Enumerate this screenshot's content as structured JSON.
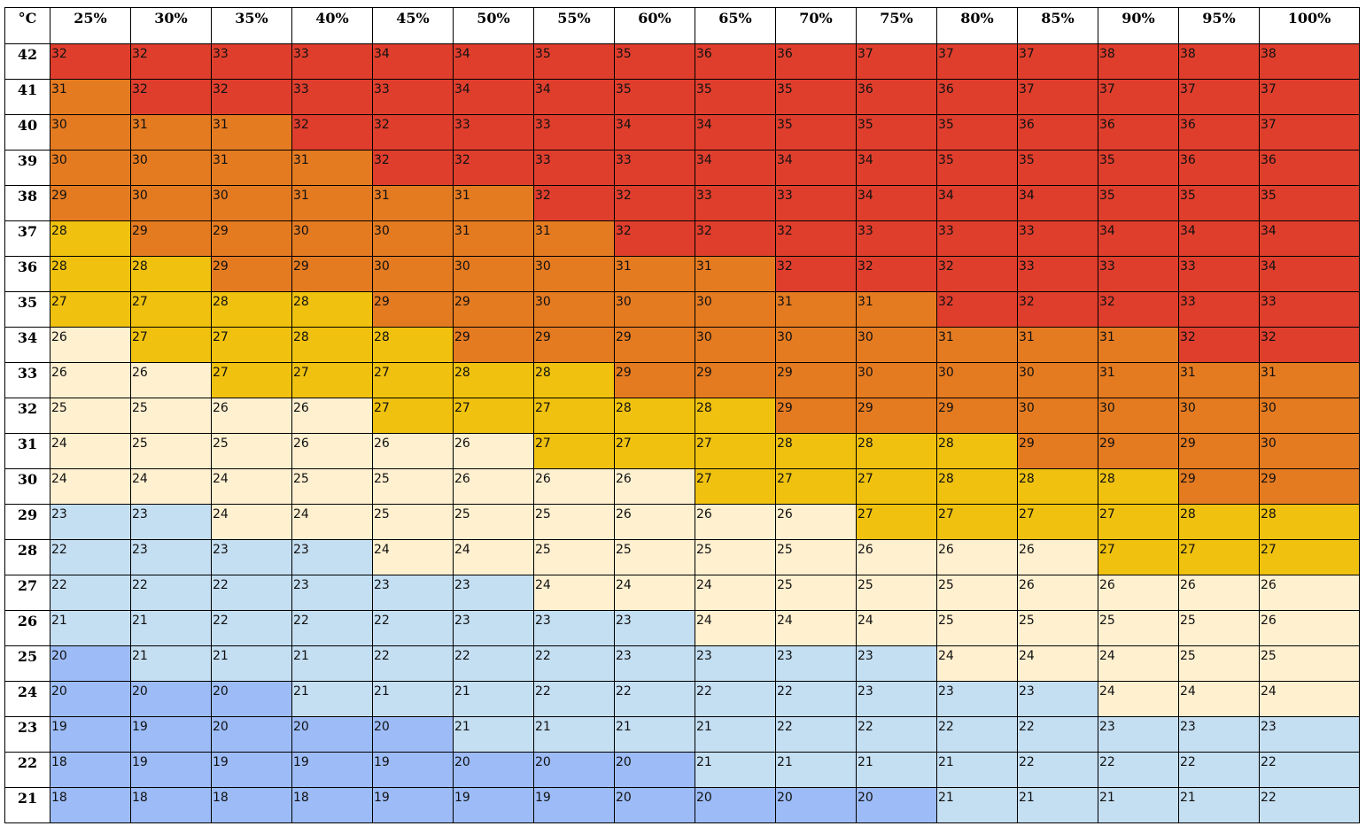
{
  "chart_data": {
    "type": "heatmap",
    "corner_label": "°C",
    "x": [
      "25%",
      "30%",
      "35%",
      "40%",
      "45%",
      "50%",
      "55%",
      "60%",
      "65%",
      "70%",
      "75%",
      "80%",
      "85%",
      "90%",
      "95%",
      "100%"
    ],
    "y": [
      "42",
      "41",
      "40",
      "39",
      "38",
      "37",
      "36",
      "35",
      "34",
      "33",
      "32",
      "31",
      "30",
      "29",
      "28",
      "27",
      "26",
      "25",
      "24",
      "23",
      "22",
      "21"
    ],
    "values": [
      [
        32,
        32,
        33,
        33,
        34,
        34,
        35,
        35,
        36,
        36,
        37,
        37,
        37,
        38,
        38,
        38
      ],
      [
        31,
        32,
        32,
        33,
        33,
        34,
        34,
        35,
        35,
        35,
        36,
        36,
        37,
        37,
        37,
        37
      ],
      [
        30,
        31,
        31,
        32,
        32,
        33,
        33,
        34,
        34,
        35,
        35,
        35,
        36,
        36,
        36,
        37
      ],
      [
        30,
        30,
        31,
        31,
        32,
        32,
        33,
        33,
        34,
        34,
        34,
        35,
        35,
        35,
        36,
        36
      ],
      [
        29,
        30,
        30,
        31,
        31,
        31,
        32,
        32,
        33,
        33,
        34,
        34,
        34,
        35,
        35,
        35
      ],
      [
        28,
        29,
        29,
        30,
        30,
        31,
        31,
        32,
        32,
        32,
        33,
        33,
        33,
        34,
        34,
        34
      ],
      [
        28,
        28,
        29,
        29,
        30,
        30,
        30,
        31,
        31,
        32,
        32,
        32,
        33,
        33,
        33,
        34
      ],
      [
        27,
        27,
        28,
        28,
        29,
        29,
        30,
        30,
        30,
        31,
        31,
        32,
        32,
        32,
        33,
        33
      ],
      [
        26,
        27,
        27,
        28,
        28,
        29,
        29,
        29,
        30,
        30,
        30,
        31,
        31,
        31,
        32,
        32
      ],
      [
        26,
        26,
        27,
        27,
        27,
        28,
        28,
        29,
        29,
        29,
        30,
        30,
        30,
        31,
        31,
        31
      ],
      [
        25,
        25,
        26,
        26,
        27,
        27,
        27,
        28,
        28,
        29,
        29,
        29,
        30,
        30,
        30,
        30
      ],
      [
        24,
        25,
        25,
        26,
        26,
        26,
        27,
        27,
        27,
        28,
        28,
        28,
        29,
        29,
        29,
        30
      ],
      [
        24,
        24,
        24,
        25,
        25,
        26,
        26,
        26,
        27,
        27,
        27,
        28,
        28,
        28,
        29,
        29
      ],
      [
        23,
        23,
        24,
        24,
        25,
        25,
        25,
        26,
        26,
        26,
        27,
        27,
        27,
        27,
        28,
        28
      ],
      [
        22,
        23,
        23,
        23,
        24,
        24,
        25,
        25,
        25,
        25,
        26,
        26,
        26,
        27,
        27,
        27
      ],
      [
        22,
        22,
        22,
        23,
        23,
        23,
        24,
        24,
        24,
        25,
        25,
        25,
        26,
        26,
        26,
        26
      ],
      [
        21,
        21,
        22,
        22,
        22,
        23,
        23,
        23,
        24,
        24,
        24,
        25,
        25,
        25,
        25,
        26
      ],
      [
        20,
        21,
        21,
        21,
        22,
        22,
        22,
        23,
        23,
        23,
        23,
        24,
        24,
        24,
        25,
        25
      ],
      [
        20,
        20,
        20,
        21,
        21,
        21,
        22,
        22,
        22,
        22,
        23,
        23,
        23,
        24,
        24,
        24
      ],
      [
        19,
        19,
        20,
        20,
        20,
        21,
        21,
        21,
        21,
        22,
        22,
        22,
        22,
        23,
        23,
        23
      ],
      [
        18,
        19,
        19,
        19,
        19,
        20,
        20,
        20,
        21,
        21,
        21,
        21,
        22,
        22,
        22,
        22
      ],
      [
        18,
        18,
        18,
        18,
        19,
        19,
        19,
        20,
        20,
        20,
        20,
        21,
        21,
        21,
        21,
        22
      ]
    ],
    "color_scale": [
      {
        "max": 20,
        "color": "#9dbcf7"
      },
      {
        "max": 23,
        "color": "#c4def2"
      },
      {
        "max": 26,
        "color": "#fff0d0"
      },
      {
        "max": 28,
        "color": "#f0c20f"
      },
      {
        "max": 31,
        "color": "#e57b21"
      },
      {
        "max": 99,
        "color": "#df3e2d"
      }
    ]
  }
}
